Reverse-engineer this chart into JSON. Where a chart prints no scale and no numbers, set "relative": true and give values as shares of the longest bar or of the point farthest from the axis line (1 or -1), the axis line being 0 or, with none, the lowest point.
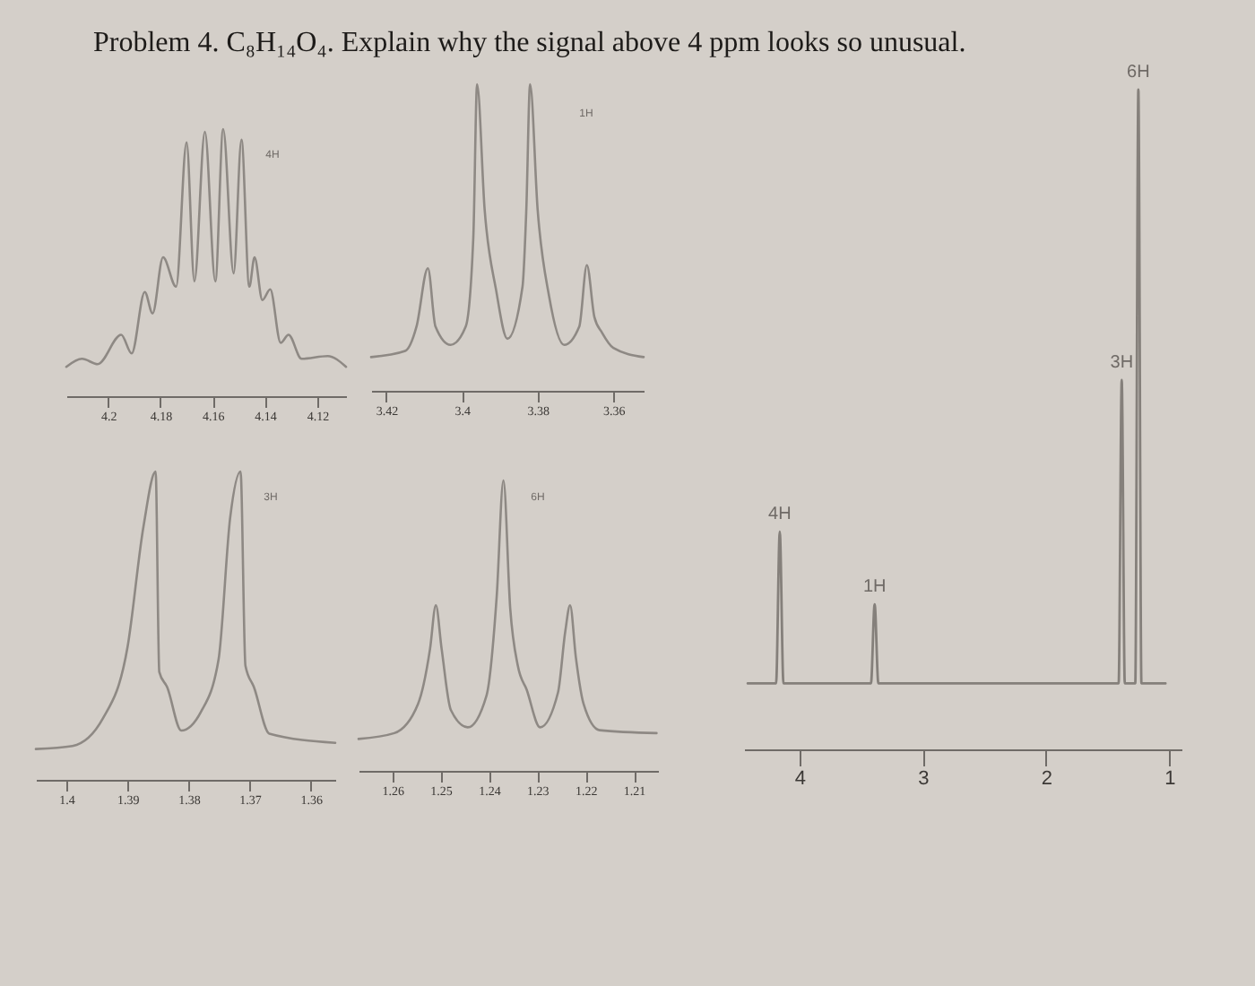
{
  "chart_data": [
    {
      "type": "line",
      "title": "Problem 4. C₈H₁₄O₄. Explain why the signal above 4 ppm looks so unusual.",
      "relative": true,
      "xlim": [
        4.216,
        4.109
      ],
      "xticks": [
        4.2,
        4.18,
        4.16,
        4.14,
        4.12
      ],
      "x": [
        4.216,
        4.21,
        4.204,
        4.195,
        4.191,
        4.186,
        4.183,
        4.179,
        4.174,
        4.17,
        4.167,
        4.163,
        4.159,
        4.156,
        4.152,
        4.149,
        4.146,
        4.144,
        4.141,
        4.138,
        4.134,
        4.131,
        4.126,
        4.116,
        4.109
      ],
      "series": [
        {
          "color": "#8e8984",
          "values": [
            0.11,
            0.14,
            0.12,
            0.23,
            0.16,
            0.39,
            0.31,
            0.52,
            0.41,
            0.95,
            0.43,
            0.99,
            0.43,
            1,
            0.46,
            0.96,
            0.41,
            0.52,
            0.36,
            0.4,
            0.2,
            0.23,
            0.14,
            0.15,
            0.11
          ]
        }
      ],
      "annotations": [
        "4H"
      ]
    },
    {
      "type": "line",
      "relative": true,
      "xlim": [
        3.424,
        3.352
      ],
      "xticks": [
        3.42,
        3.4,
        3.38,
        3.36
      ],
      "x": [
        3.424,
        3.415,
        3.412,
        3.409,
        3.407,
        3.403,
        3.399,
        3.397,
        3.396,
        3.394,
        3.391,
        3.388,
        3.384,
        3.383,
        3.382,
        3.38,
        3.377,
        3.373,
        3.369,
        3.367,
        3.365,
        3.363,
        3.36,
        3.352
      ],
      "series": [
        {
          "color": "#8e8984",
          "values": [
            0.11,
            0.13,
            0.21,
            0.4,
            0.21,
            0.15,
            0.21,
            0.5,
            1,
            0.59,
            0.33,
            0.17,
            0.34,
            0.59,
            1,
            0.59,
            0.31,
            0.15,
            0.21,
            0.41,
            0.24,
            0.19,
            0.14,
            0.11
          ]
        }
      ],
      "annotations": [
        "1H"
      ]
    },
    {
      "type": "line",
      "relative": true,
      "xlim": [
        1.405,
        1.356
      ],
      "xticks": [
        1.4,
        1.39,
        1.38,
        1.37,
        1.36
      ],
      "x": [
        1.405,
        1.399,
        1.394,
        1.39,
        1.3874,
        1.3854,
        1.3848,
        1.3835,
        1.3812,
        1.378,
        1.3751,
        1.3732,
        1.3715,
        1.3707,
        1.3693,
        1.3668,
        1.356
      ],
      "series": [
        {
          "color": "#8e8984",
          "values": [
            0.1,
            0.11,
            0.2,
            0.43,
            0.82,
            1,
            0.35,
            0.3,
            0.16,
            0.22,
            0.39,
            0.85,
            1,
            0.37,
            0.3,
            0.15,
            0.12
          ]
        }
      ],
      "annotations": [
        "3H"
      ]
    },
    {
      "type": "line",
      "relative": true,
      "xlim": [
        1.267,
        1.205
      ],
      "xticks": [
        1.26,
        1.25,
        1.24,
        1.23,
        1.22,
        1.21
      ],
      "x": [
        1.267,
        1.2596,
        1.2547,
        1.2522,
        1.251,
        1.2498,
        1.2479,
        1.2444,
        1.2405,
        1.2384,
        1.237,
        1.2356,
        1.234,
        1.2322,
        1.2294,
        1.2257,
        1.2242,
        1.2232,
        1.222,
        1.2204,
        1.2171,
        1.2053
      ],
      "series": [
        {
          "color": "#8e8984",
          "values": [
            0.11,
            0.13,
            0.23,
            0.42,
            0.57,
            0.42,
            0.21,
            0.15,
            0.26,
            0.6,
            1,
            0.56,
            0.36,
            0.28,
            0.15,
            0.27,
            0.48,
            0.57,
            0.39,
            0.23,
            0.14,
            0.13
          ]
        }
      ],
      "annotations": [
        "6H"
      ]
    },
    {
      "type": "line",
      "relative": true,
      "xlim": [
        4.45,
        0.9
      ],
      "xticks": [
        4,
        3,
        2,
        1
      ],
      "x": [
        4.42,
        4.19,
        4.16,
        4.13,
        3.42,
        3.39,
        3.36,
        1.41,
        1.385,
        1.36,
        1.275,
        1.25,
        1.225,
        1.03
      ],
      "series": [
        {
          "color": "#85807b",
          "values": [
            0.1,
            0.1,
            0.33,
            0.1,
            0.1,
            0.22,
            0.1,
            0.1,
            0.56,
            0.1,
            0.1,
            1,
            0.1,
            0.1
          ]
        }
      ],
      "annotations": [
        {
          "text": "4H",
          "x": 4.16,
          "y": 0.33
        },
        {
          "text": "1H",
          "x": 3.39,
          "y": 0.22
        },
        {
          "text": "3H",
          "x": 1.385,
          "y": 0.56
        },
        {
          "text": "6H",
          "x": 1.25,
          "y": 1
        }
      ]
    }
  ]
}
